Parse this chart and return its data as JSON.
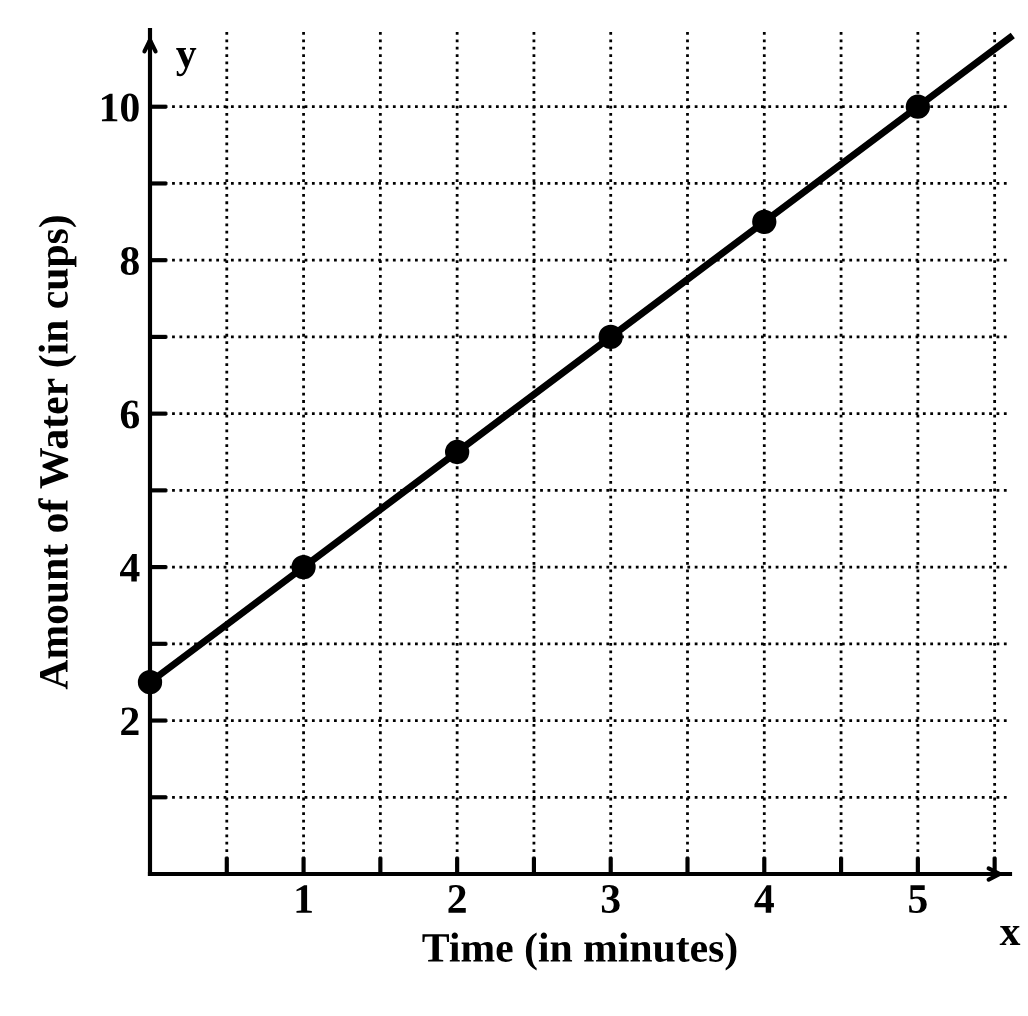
{
  "chart_data": {
    "type": "line",
    "xlabel": "Time (in minutes)",
    "ylabel": "Amount of Water (in cups)",
    "annotations": [
      "x",
      "y"
    ],
    "series": [
      {
        "color": "#000000",
        "x": [
          0,
          5.6
        ],
        "values": [
          2.5,
          10.9
        ],
        "marker": "none"
      },
      {
        "type": "scatter",
        "color": "#000000",
        "x": [
          0,
          1,
          2,
          3,
          4,
          5
        ],
        "values": [
          2.5,
          4,
          5.5,
          7,
          8.5,
          10
        ],
        "marker": "circle"
      }
    ],
    "xlim": [
      0,
      5.6
    ],
    "ylim": [
      0,
      11
    ],
    "xticks": [
      {
        "value": 0.5,
        "label": null
      },
      1,
      {
        "value": 1.5,
        "label": null
      },
      2,
      {
        "value": 2.5,
        "label": null
      },
      3,
      {
        "value": 3.5,
        "label": null
      },
      4,
      {
        "value": 4.5,
        "label": null
      },
      5,
      {
        "value": 5.5,
        "label": null
      }
    ],
    "yticks": [
      {
        "value": 1,
        "label": null
      },
      2,
      {
        "value": 3,
        "label": null
      },
      4,
      {
        "value": 5,
        "label": null
      },
      6,
      {
        "value": 7,
        "label": null
      },
      8,
      {
        "value": 9,
        "label": null
      },
      10
    ],
    "grid": true,
    "line_style": "solid"
  }
}
